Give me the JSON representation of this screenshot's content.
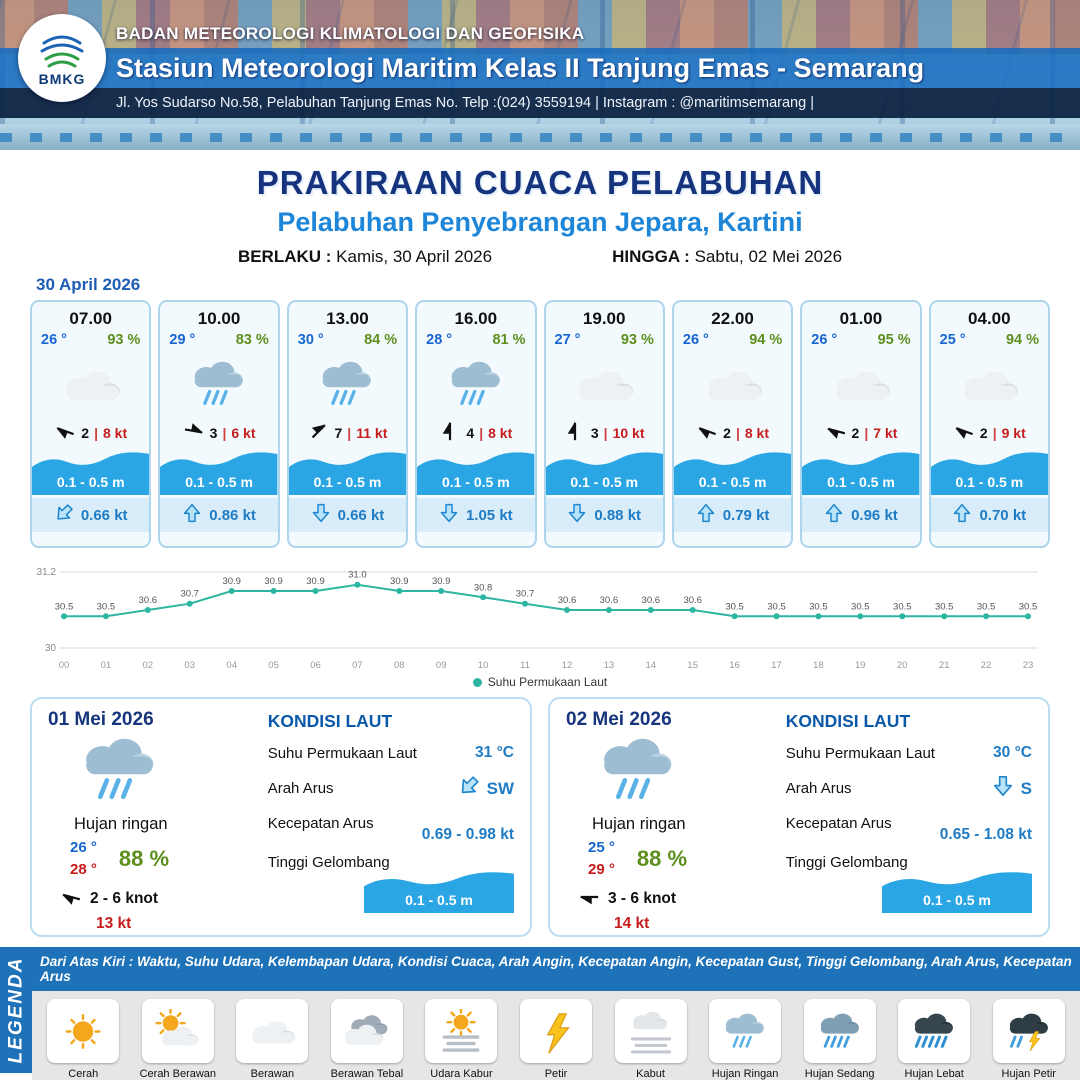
{
  "header": {
    "logo_text": "BMKG",
    "org_line": "BADAN METEOROLOGI KLIMATOLOGI DAN GEOFISIKA",
    "station_line": "Stasiun Meteorologi Maritim Kelas II Tanjung Emas - Semarang",
    "address_line": "Jl. Yos Sudarso No.58, Pelabuhan Tanjung Emas No. Telp :(024) 3559194 | Instagram : @maritimsemarang |"
  },
  "title": {
    "main": "PRAKIRAAN CUACA PELABUHAN",
    "subtitle": "Pelabuhan Penyebrangan Jepara, Kartini",
    "berlaku_label": "BERLAKU :",
    "berlaku_value": "Kamis, 30 April 2026",
    "hingga_label": "HINGGA :",
    "hingga_value": "Sabtu, 02 Mei 2026"
  },
  "forecast_date": "30 April 2026",
  "hourly_cards": [
    {
      "time": "07.00",
      "temp": "26 °",
      "humidity": "93 %",
      "weather_icon": "berawan",
      "wind_number": "2",
      "wind_speed": "8 kt",
      "wind_rot": 200,
      "wave": "0.1 - 0.5 m",
      "current": "0.66 kt",
      "current_rot": 225
    },
    {
      "time": "10.00",
      "temp": "29 °",
      "humidity": "83 %",
      "weather_icon": "hujan-ringan",
      "wind_number": "3",
      "wind_speed": "6 kt",
      "wind_rot": 10,
      "wave": "0.1 - 0.5 m",
      "current": "0.86 kt",
      "current_rot": 0
    },
    {
      "time": "13.00",
      "temp": "30 °",
      "humidity": "84 %",
      "weather_icon": "hujan-ringan",
      "wind_number": "7",
      "wind_speed": "11 kt",
      "wind_rot": 315,
      "wave": "0.1 - 0.5 m",
      "current": "0.66 kt",
      "current_rot": 180
    },
    {
      "time": "16.00",
      "temp": "28 °",
      "humidity": "81 %",
      "weather_icon": "hujan-ringan",
      "wind_number": "4",
      "wind_speed": "8 kt",
      "wind_rot": 270,
      "wave": "0.1 - 0.5 m",
      "current": "1.05 kt",
      "current_rot": 180
    },
    {
      "time": "19.00",
      "temp": "27 °",
      "humidity": "93 %",
      "weather_icon": "berawan",
      "wind_number": "3",
      "wind_speed": "10 kt",
      "wind_rot": 270,
      "wave": "0.1 - 0.5 m",
      "current": "0.88 kt",
      "current_rot": 180
    },
    {
      "time": "22.00",
      "temp": "26 °",
      "humidity": "94 %",
      "weather_icon": "berawan",
      "wind_number": "2",
      "wind_speed": "8 kt",
      "wind_rot": 200,
      "wave": "0.1 - 0.5 m",
      "current": "0.79 kt",
      "current_rot": 0
    },
    {
      "time": "01.00",
      "temp": "26 °",
      "humidity": "95 %",
      "weather_icon": "berawan",
      "wind_number": "2",
      "wind_speed": "7 kt",
      "wind_rot": 195,
      "wave": "0.1 - 0.5 m",
      "current": "0.96 kt",
      "current_rot": 0
    },
    {
      "time": "04.00",
      "temp": "25 °",
      "humidity": "94 %",
      "weather_icon": "berawan",
      "wind_number": "2",
      "wind_speed": "9 kt",
      "wind_rot": 200,
      "wave": "0.1 - 0.5 m",
      "current": "0.70 kt",
      "current_rot": 0
    }
  ],
  "chart_data": {
    "type": "line",
    "x": [
      "00",
      "01",
      "02",
      "03",
      "04",
      "05",
      "06",
      "07",
      "08",
      "09",
      "10",
      "11",
      "12",
      "13",
      "14",
      "15",
      "16",
      "17",
      "18",
      "19",
      "20",
      "21",
      "22",
      "23"
    ],
    "series": [
      {
        "name": "Suhu Permukaan Laut",
        "values": [
          30.5,
          30.5,
          30.6,
          30.7,
          30.9,
          30.9,
          30.9,
          31.0,
          30.9,
          30.9,
          30.8,
          30.7,
          30.6,
          30.6,
          30.6,
          30.6,
          30.5,
          30.5,
          30.5,
          30.5,
          30.5,
          30.5,
          30.5,
          30.5
        ]
      }
    ],
    "ylim": [
      30,
      31.2
    ],
    "yticks": [
      31.2,
      30
    ],
    "line_color": "#2cb5a0",
    "grid": true,
    "legend_position": "bottom",
    "title": "",
    "xlabel": "",
    "ylabel": ""
  },
  "daily_cards": [
    {
      "date": "01 Mei 2026",
      "weather_icon": "hujan-ringan",
      "condition": "Hujan ringan",
      "temp_min": "26 °",
      "temp_max": "28 °",
      "humidity": "88 %",
      "wind_range": "2 - 6 knot",
      "gust": "13 kt",
      "wind_rot": 195,
      "sea": {
        "heading": "KONDISI LAUT",
        "sst_label": "Suhu Permukaan Laut",
        "sst": "31 °C",
        "arus_label": "Arah Arus",
        "arus_dir": "SW",
        "arus_rot": 225,
        "kec_label": "Kecepatan Arus",
        "kec": "0.69 - 0.98 kt",
        "gel_label": "Tinggi Gelombang",
        "gel": "0.1 - 0.5 m"
      }
    },
    {
      "date": "02 Mei 2026",
      "weather_icon": "hujan-ringan",
      "condition": "Hujan ringan",
      "temp_min": "25 °",
      "temp_max": "29 °",
      "humidity": "88 %",
      "wind_range": "3 - 6 knot",
      "gust": "14 kt",
      "wind_rot": 180,
      "sea": {
        "heading": "KONDISI LAUT",
        "sst_label": "Suhu Permukaan Laut",
        "sst": "30 °C",
        "arus_label": "Arah Arus",
        "arus_dir": "S",
        "arus_rot": 180,
        "kec_label": "Kecepatan Arus",
        "kec": "0.65 - 1.08 kt",
        "gel_label": "Tinggi Gelombang",
        "gel": "0.1 - 0.5 m"
      }
    }
  ],
  "legend": {
    "title": "LEGENDA",
    "description": "Dari Atas Kiri : Waktu, Suhu Udara, Kelembapan Udara, Kondisi Cuaca, Arah Angin, Kecepatan Angin, Kecepatan Gust, Tinggi Gelombang, Arah Arus, Kecepatan Arus",
    "items": [
      {
        "label": "Cerah",
        "icon": "cerah"
      },
      {
        "label": "Cerah Berawan",
        "icon": "cerah-berawan"
      },
      {
        "label": "Berawan",
        "icon": "berawan"
      },
      {
        "label": "Berawan Tebal",
        "icon": "berawan-tebal"
      },
      {
        "label": "Udara Kabur",
        "icon": "udara-kabur"
      },
      {
        "label": "Petir",
        "icon": "petir"
      },
      {
        "label": "Kabut",
        "icon": "kabut"
      },
      {
        "label": "Hujan Ringan",
        "icon": "hujan-ringan"
      },
      {
        "label": "Hujan Sedang",
        "icon": "hujan-sedang"
      },
      {
        "label": "Hujan Lebat",
        "icon": "hujan-lebat"
      },
      {
        "label": "Hujan Petir",
        "icon": "hujan-petir"
      }
    ]
  }
}
